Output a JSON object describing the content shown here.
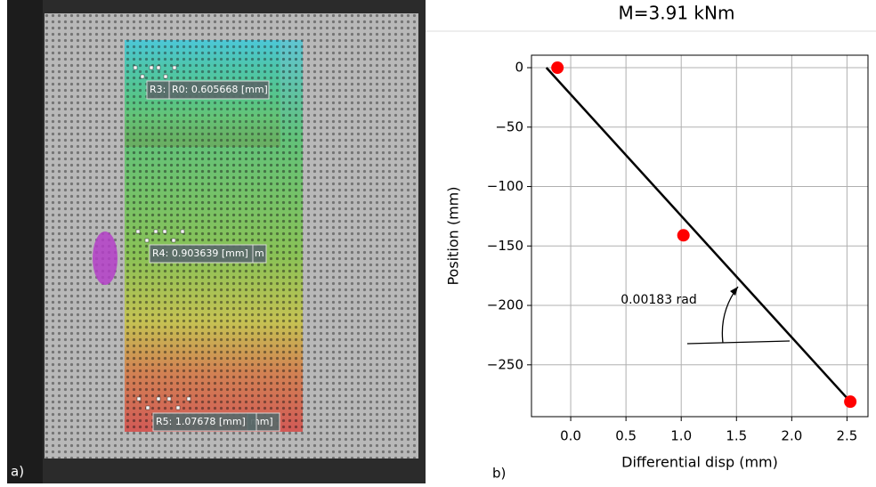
{
  "image_panel": {
    "panel_label": "a)",
    "labels": [
      "R3:",
      "R0: 0.605668 [mm]",
      "R4: 0.903639 [mm]",
      "m",
      "R5: 1.07678 [mm]",
      "mm]"
    ]
  },
  "chart_data": {
    "type": "scatter",
    "title": "M=3.91 kNm",
    "panel_label": "b)",
    "xlabel": "Differential disp (mm)",
    "ylabel": "Position (mm)",
    "xlim": [
      -0.355,
      2.69
    ],
    "ylim": [
      -293.6,
      10.5
    ],
    "xticks": [
      {
        "value": 0,
        "label": "0.0"
      },
      0.5,
      {
        "value": 1,
        "label": "1.0"
      },
      1.5,
      {
        "value": 2,
        "label": "2.0"
      },
      2.5
    ],
    "yticks": [
      0,
      {
        "value": -50,
        "label": "−50"
      },
      {
        "value": -100,
        "label": "−100"
      },
      {
        "value": -150,
        "label": "−150"
      },
      {
        "value": -200,
        "label": "−200"
      },
      {
        "value": -250,
        "label": "−250"
      }
    ],
    "grid": true,
    "series": [
      {
        "mode": "markers",
        "color": "#ff0000",
        "x": [
          -0.12,
          1.02,
          2.53
        ],
        "values": [
          0,
          -141,
          -281
        ]
      },
      {
        "mode": "line",
        "color": "#000000",
        "x": [
          -0.22,
          2.53
        ],
        "values": [
          0,
          -281
        ]
      }
    ],
    "annotation": "0.00183 rad"
  }
}
